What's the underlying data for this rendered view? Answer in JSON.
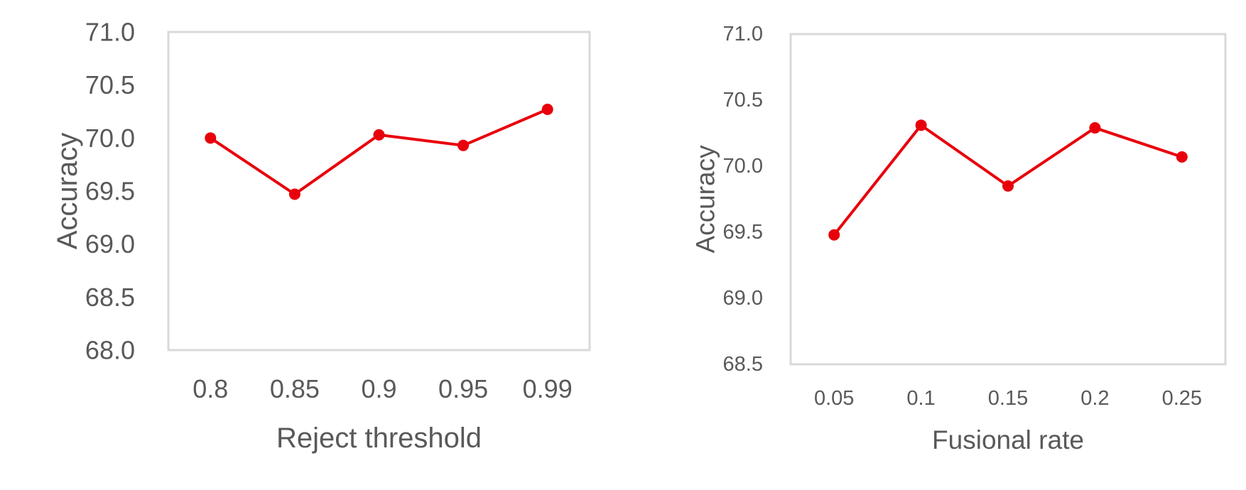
{
  "chart_data": [
    {
      "type": "line",
      "title": "",
      "xlabel": "Reject threshold",
      "ylabel": "Accuracy",
      "categories": [
        "0.8",
        "0.85",
        "0.9",
        "0.95",
        "0.99"
      ],
      "ylim": [
        68.0,
        71.0
      ],
      "yticks": [
        "68.0",
        "68.5",
        "69.0",
        "69.5",
        "70.0",
        "70.5",
        "71.0"
      ],
      "series": [
        {
          "name": "",
          "values": [
            70.0,
            69.47,
            70.03,
            69.93,
            70.27
          ]
        }
      ],
      "grid": false,
      "legend": "none",
      "color": "#e8000b"
    },
    {
      "type": "line",
      "title": "",
      "xlabel": "Fusional rate",
      "ylabel": "Accuracy",
      "categories": [
        "0.05",
        "0.1",
        "0.15",
        "0.2",
        "0.25"
      ],
      "ylim": [
        68.5,
        71.0
      ],
      "yticks": [
        "68.5",
        "69.0",
        "69.5",
        "70.0",
        "70.5",
        "71.0"
      ],
      "series": [
        {
          "name": "",
          "values": [
            69.48,
            70.31,
            69.85,
            70.29,
            70.07
          ]
        }
      ],
      "grid": false,
      "legend": "none",
      "color": "#e8000b"
    }
  ]
}
